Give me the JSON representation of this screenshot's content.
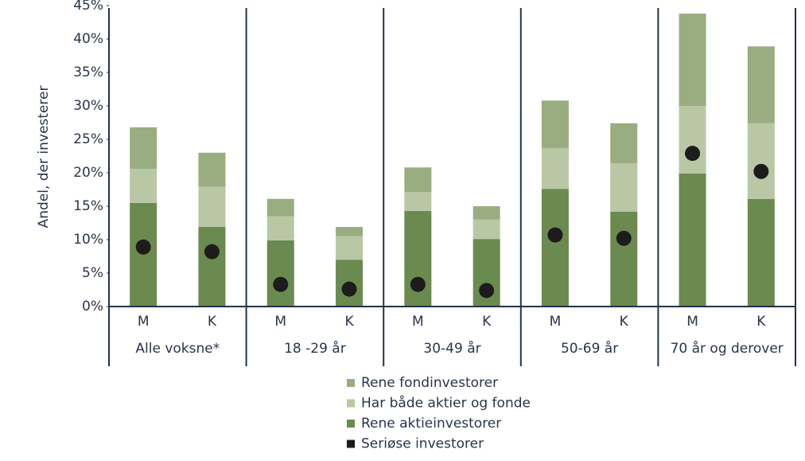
{
  "chart_data": {
    "type": "stacked-bar-dot",
    "y_label": "Andel, der investerer",
    "groups": [
      "Alle voksne*",
      "18 -29 år",
      "30-49 år",
      "50-69 år",
      "70 år og derover"
    ],
    "categories": [
      "M",
      "K",
      "M",
      "K",
      "M",
      "K",
      "M",
      "K",
      "M",
      "K"
    ],
    "series": [
      {
        "name": "Rene aktieinvestorer",
        "color": "#6b8a4f",
        "values": [
          15.5,
          11.9,
          9.9,
          7.0,
          14.3,
          10.1,
          17.6,
          14.2,
          19.9,
          16.1
        ]
      },
      {
        "name": "Har både aktier og fonde",
        "color": "#b9c7a5",
        "values": [
          5.1,
          6.0,
          3.6,
          3.5,
          2.8,
          2.9,
          6.1,
          7.2,
          10.1,
          11.3
        ]
      },
      {
        "name": "Rene fondinvestorer",
        "color": "#9aad80",
        "values": [
          6.2,
          5.1,
          2.6,
          1.4,
          3.7,
          2.0,
          7.1,
          6.0,
          13.8,
          11.5
        ]
      },
      {
        "name": "Seriøse investorer",
        "color": "#1c1c1c",
        "type": "dot",
        "values": [
          8.9,
          8.2,
          3.3,
          2.6,
          3.3,
          2.4,
          10.7,
          10.2,
          22.9,
          20.2
        ]
      }
    ],
    "legend_order": [
      2,
      1,
      0,
      3
    ],
    "ylim": [
      0,
      45
    ],
    "yticks": [
      {
        "value": 0,
        "label": "0%"
      },
      {
        "value": 5,
        "label": "5%"
      },
      {
        "value": 10,
        "label": "10%"
      },
      {
        "value": 15,
        "label": "15%"
      },
      {
        "value": 20,
        "label": "20%"
      },
      {
        "value": 25,
        "label": "25%"
      },
      {
        "value": 30,
        "label": "30%"
      },
      {
        "value": 35,
        "label": "35%"
      },
      {
        "value": 40,
        "label": "40%"
      },
      {
        "value": 45,
        "label": "45%"
      }
    ]
  }
}
